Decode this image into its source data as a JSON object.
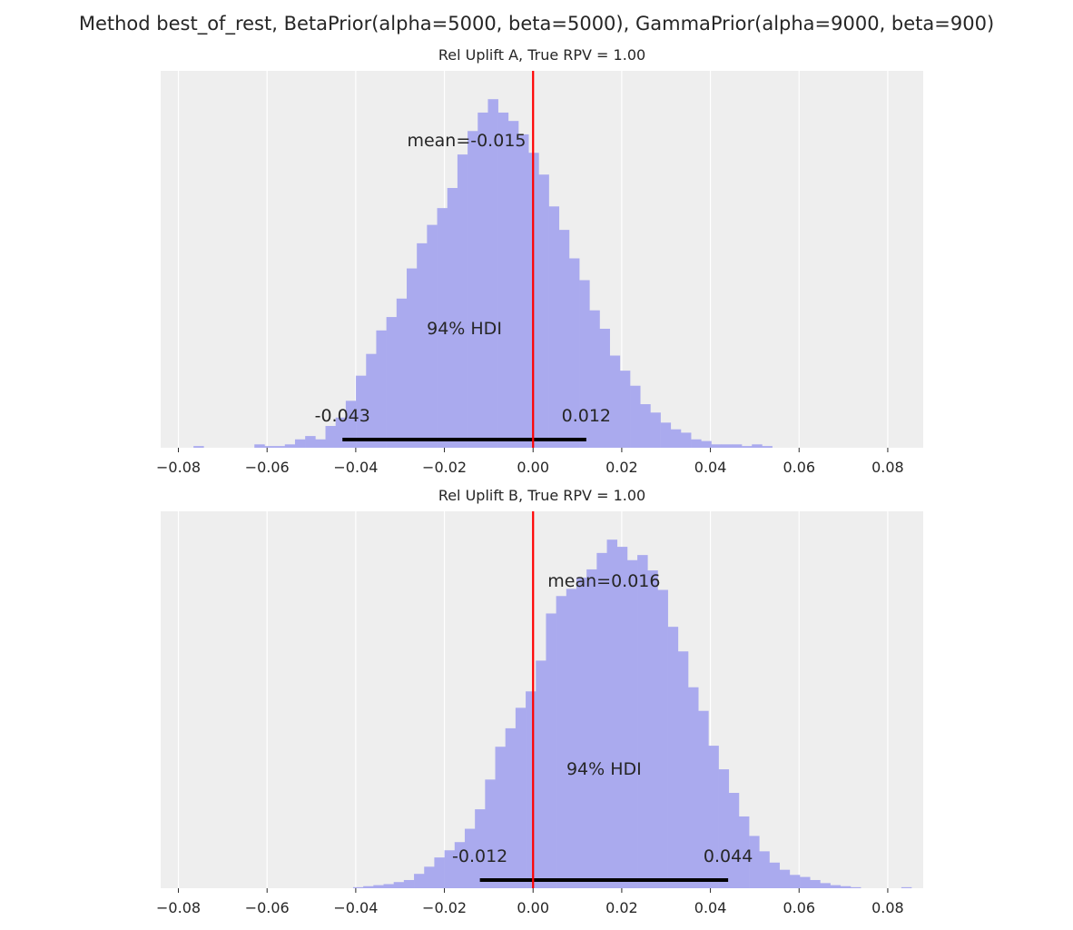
{
  "figure": {
    "suptitle": "Method best_of_rest, BetaPrior(alpha=5000, beta=5000), GammaPrior(alpha=9000, beta=900)"
  },
  "colors": {
    "axes_background": "#eeeeee",
    "grid": "#ffffff",
    "histogram": "#aaaaee",
    "reference_line": "#ff0000",
    "hdi_bar": "#000000",
    "text": "#262626"
  },
  "chart_data": [
    {
      "type": "histogram",
      "title": "Rel Uplift A, True RPV = 1.00",
      "xlim": [
        -0.084,
        0.088
      ],
      "xticks": [
        -0.08,
        -0.06,
        -0.04,
        -0.02,
        0.0,
        0.02,
        0.04,
        0.06,
        0.08
      ],
      "xtick_labels": [
        "−0.08",
        "−0.06",
        "−0.04",
        "−0.02",
        "0.00",
        "0.02",
        "0.04",
        "0.06",
        "0.08"
      ],
      "grid": true,
      "yaxis_visible": false,
      "bin_width": 0.00229,
      "bin_start": -0.0766,
      "counts": [
        1,
        0,
        0,
        0,
        0,
        0,
        2,
        1,
        1,
        2,
        5,
        7,
        5,
        13,
        18,
        28,
        43,
        56,
        70,
        78,
        89,
        107,
        122,
        133,
        143,
        155,
        175,
        189,
        200,
        208,
        200,
        195,
        187,
        176,
        163,
        144,
        130,
        113,
        100,
        82,
        71,
        55,
        46,
        37,
        26,
        21,
        15,
        11,
        9,
        5,
        4,
        2,
        2,
        2,
        1,
        2,
        1
      ],
      "ref_line_x": 0.0,
      "mean": -0.015,
      "mean_label": "mean=-0.015",
      "hdi_label": "94% HDI",
      "hdi_low": -0.043,
      "hdi_high": 0.012,
      "hdi_low_label": "-0.043",
      "hdi_high_label": "0.012"
    },
    {
      "type": "histogram",
      "title": "Rel Uplift B, True RPV = 1.00",
      "xlim": [
        -0.084,
        0.088
      ],
      "xticks": [
        -0.08,
        -0.06,
        -0.04,
        -0.02,
        0.0,
        0.02,
        0.04,
        0.06,
        0.08
      ],
      "xtick_labels": [
        "−0.08",
        "−0.06",
        "−0.04",
        "−0.02",
        "0.00",
        "0.02",
        "0.04",
        "0.06",
        "0.08"
      ],
      "grid": true,
      "yaxis_visible": false,
      "bin_width": 0.00229,
      "bin_start": -0.0406,
      "counts": [
        1,
        2,
        3,
        4,
        6,
        8,
        14,
        21,
        30,
        37,
        45,
        58,
        77,
        106,
        138,
        156,
        176,
        192,
        222,
        268,
        285,
        292,
        303,
        311,
        327,
        340,
        333,
        320,
        325,
        310,
        291,
        255,
        231,
        196,
        173,
        139,
        116,
        93,
        70,
        51,
        36,
        25,
        18,
        13,
        11,
        8,
        5,
        3,
        2,
        1,
        0,
        0,
        0,
        0,
        1
      ],
      "ref_line_x": 0.0,
      "mean": 0.016,
      "mean_label": "mean=0.016",
      "hdi_label": "94% HDI",
      "hdi_low": -0.012,
      "hdi_high": 0.044,
      "hdi_low_label": "-0.012",
      "hdi_high_label": "0.044"
    }
  ]
}
